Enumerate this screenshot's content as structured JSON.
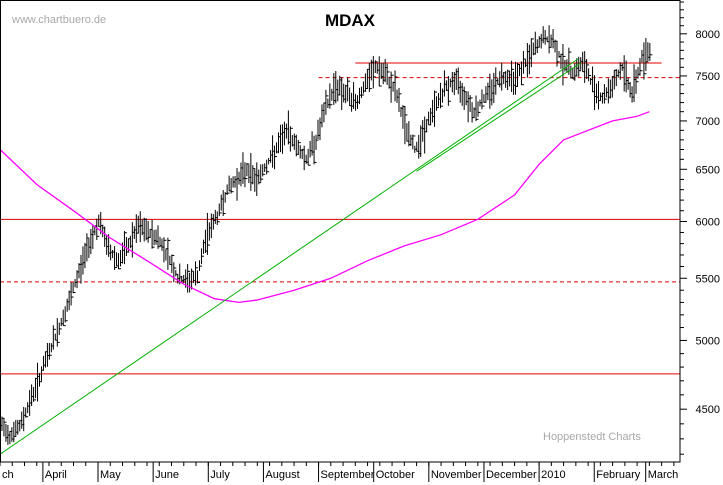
{
  "chart_data": {
    "type": "ohlc-bar",
    "title": "MDAX",
    "watermark_top": "www.chartbuero.de",
    "watermark_bottom": "Hoppenstedt Charts",
    "y_axis": {
      "scale": "log",
      "ylim": [
        4150,
        8400
      ],
      "position": "right",
      "tick_labels": [
        {
          "value": 4500,
          "label": "4500"
        },
        {
          "value": 5000,
          "label": "5000"
        },
        {
          "value": 5500,
          "label": "5500"
        },
        {
          "value": 6000,
          "label": "6000"
        },
        {
          "value": 6500,
          "label": "6500"
        },
        {
          "value": 7000,
          "label": "7000"
        },
        {
          "value": 7500,
          "label": "7500"
        },
        {
          "value": 8000,
          "label": "8000"
        }
      ],
      "minor_step": 100
    },
    "x_axis": {
      "months": [
        {
          "label": "ch",
          "week": 0
        },
        {
          "label": "April",
          "week": 3.5
        },
        {
          "label": "May",
          "week": 8
        },
        {
          "label": "June",
          "week": 12.5
        },
        {
          "label": "July",
          "week": 17
        },
        {
          "label": "August",
          "week": 21.5
        },
        {
          "label": "September",
          "week": 26
        },
        {
          "label": "October",
          "week": 30.5
        },
        {
          "label": "November",
          "week": 35
        },
        {
          "label": "December",
          "week": 39.5
        },
        {
          "label": "2010",
          "week": 44
        },
        {
          "label": "February",
          "week": 48.5
        },
        {
          "label": "March",
          "week": 52.7
        }
      ],
      "xlim": [
        0,
        55.5
      ]
    },
    "series": [
      {
        "type": "ohlc",
        "color": "#000000",
        "values": [
          4400,
          4330,
          4380,
          4550,
          4720,
          4920,
          5100,
          5300,
          5550,
          5800,
          6000,
          5750,
          5650,
          5780,
          5950,
          5900,
          5850,
          5700,
          5500,
          5480,
          5520,
          5900,
          6050,
          6300,
          6400,
          6500,
          6400,
          6550,
          6700,
          6900,
          6750,
          6600,
          6800,
          7150,
          7400,
          7300,
          7200,
          7400,
          7600,
          7500,
          7350,
          6950,
          6700,
          6900,
          7150,
          7350,
          7450,
          7300,
          7100,
          7250,
          7400,
          7500,
          7480,
          7600,
          7800,
          7950,
          7900,
          7650,
          7550,
          7650,
          7400,
          7250,
          7400,
          7600,
          7300,
          7700,
          7850
        ]
      },
      {
        "name": "",
        "type": "moving-average",
        "color": "#ff00ff",
        "points": [
          [
            0,
            6700
          ],
          [
            3,
            6350
          ],
          [
            6,
            6100
          ],
          [
            9,
            5850
          ],
          [
            12,
            5650
          ],
          [
            15,
            5450
          ],
          [
            17.5,
            5330
          ],
          [
            19.5,
            5300
          ],
          [
            21,
            5320
          ],
          [
            24,
            5400
          ],
          [
            27,
            5500
          ],
          [
            30,
            5650
          ],
          [
            33,
            5780
          ],
          [
            36,
            5880
          ],
          [
            39,
            6020
          ],
          [
            42,
            6250
          ],
          [
            44,
            6550
          ],
          [
            46,
            6800
          ],
          [
            48,
            6900
          ],
          [
            50,
            7000
          ],
          [
            52,
            7050
          ],
          [
            53,
            7100
          ]
        ]
      }
    ],
    "trendlines": [
      {
        "kind": "support",
        "color": "#00b000",
        "from": [
          0,
          4200
        ],
        "to": [
          47.2,
          7700
        ]
      },
      {
        "kind": "support",
        "color": "#00b000",
        "from": [
          34,
          6480
        ],
        "to": [
          47.4,
          7650
        ]
      }
    ],
    "horizontal_lines": [
      {
        "value": 6020,
        "style": "solid",
        "color": "#e00000",
        "x_from": 0,
        "x_to": 55.5
      },
      {
        "value": 5470,
        "style": "dashed",
        "color": "#e00000",
        "x_from": 0,
        "x_to": 55.5
      },
      {
        "value": 4750,
        "style": "solid",
        "color": "#e00000",
        "x_from": 0,
        "x_to": 55.5
      },
      {
        "value": 7650,
        "style": "solid",
        "color": "#e00000",
        "x_from": 29,
        "x_to": 54
      },
      {
        "value": 7480,
        "style": "dashed",
        "color": "#e00000",
        "x_from": 26,
        "x_to": 55.5
      }
    ],
    "grid": false,
    "legend": "none"
  }
}
